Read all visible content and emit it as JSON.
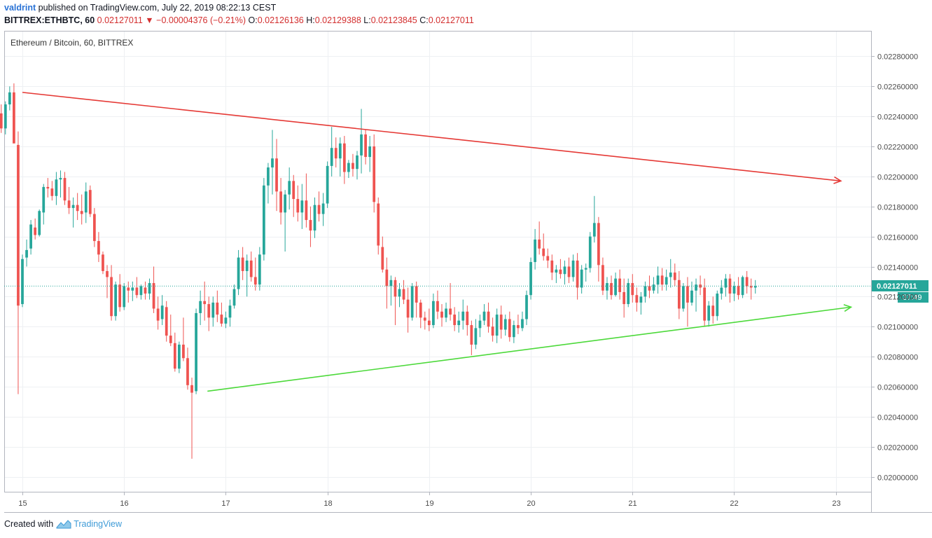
{
  "header": {
    "author": "valdrint",
    "published_text": " published on TradingView.com, July 22, 2019 08:22:13 CEST",
    "symbol": "BITTREX:ETHBTC, 60",
    "price": "0.02127011",
    "change": "−0.00004376 (−0.21%)",
    "ohlc": {
      "o_label": "O:",
      "o": "0.02126136",
      "h_label": "H:",
      "h": "0.02129388",
      "l_label": "L:",
      "l": "0.02123845",
      "c_label": "C:",
      "c": "0.02127011"
    }
  },
  "footer": {
    "created_with": "Created with",
    "brand": "TradingView"
  },
  "chart_data": {
    "type": "candlestick",
    "title": "Ethereum / Bitcoin, 60, BITTREX",
    "ylim": [
      0.0199,
      0.02297
    ],
    "y_ticks": [
      "0.02000000",
      "0.02020000",
      "0.02040000",
      "0.02060000",
      "0.02080000",
      "0.02100000",
      "0.02120000",
      "0.02140000",
      "0.02160000",
      "0.02180000",
      "0.02200000",
      "0.02220000",
      "0.02240000",
      "0.02260000",
      "0.02280000"
    ],
    "x_ticks": [
      "15",
      "16",
      "17",
      "18",
      "19",
      "20",
      "21",
      "22",
      "23"
    ],
    "grid": true,
    "last_price": {
      "label": "0.02127011",
      "value": 0.02127011,
      "countdown": "37:49",
      "color": "#26a69a"
    },
    "trendlines": [
      {
        "name": "descending resistance",
        "color": "#e53935",
        "arrow": true,
        "from": {
          "day": 15.0,
          "price": 0.02256
        },
        "to": {
          "day": 23.05,
          "price": 0.02197
        }
      },
      {
        "name": "ascending support",
        "color": "#4cd93a",
        "arrow": true,
        "from": {
          "day": 16.82,
          "price": 0.02057
        },
        "to": {
          "day": 23.15,
          "price": 0.02113
        }
      }
    ],
    "colors": {
      "up": "#26a69a",
      "down": "#ef5350"
    },
    "candle_interval_days": 0.04167,
    "start_day": 14.75,
    "candles": [
      [
        0.02244,
        0.02245,
        0.02232,
        0.02242
      ],
      [
        0.02242,
        0.02248,
        0.02229,
        0.02232
      ],
      [
        0.02232,
        0.0225,
        0.02228,
        0.02248
      ],
      [
        0.02248,
        0.0226,
        0.02244,
        0.02256
      ],
      [
        0.02256,
        0.02262,
        0.02225,
        0.02222
      ],
      [
        0.02221,
        0.0223,
        0.02055,
        0.02114
      ],
      [
        0.02115,
        0.02148,
        0.02113,
        0.02145
      ],
      [
        0.02146,
        0.02158,
        0.0214,
        0.02151
      ],
      [
        0.02152,
        0.02171,
        0.02148,
        0.02168
      ],
      [
        0.02166,
        0.02172,
        0.02158,
        0.02161
      ],
      [
        0.02161,
        0.02178,
        0.0216,
        0.02177
      ],
      [
        0.02176,
        0.02195,
        0.02168,
        0.02193
      ],
      [
        0.02193,
        0.02199,
        0.02186,
        0.02192
      ],
      [
        0.02192,
        0.02197,
        0.02184,
        0.02187
      ],
      [
        0.02187,
        0.02203,
        0.02181,
        0.02198
      ],
      [
        0.02198,
        0.02204,
        0.02186,
        0.02199
      ],
      [
        0.02199,
        0.02203,
        0.02181,
        0.02184
      ],
      [
        0.02184,
        0.02193,
        0.02175,
        0.02179
      ],
      [
        0.02179,
        0.02186,
        0.02166,
        0.02181
      ],
      [
        0.02181,
        0.02189,
        0.02171,
        0.02177
      ],
      [
        0.02177,
        0.02188,
        0.02168,
        0.02175
      ],
      [
        0.02176,
        0.02196,
        0.02169,
        0.0219
      ],
      [
        0.02191,
        0.02194,
        0.02173,
        0.02175
      ],
      [
        0.02175,
        0.02179,
        0.02153,
        0.02157
      ],
      [
        0.02157,
        0.02163,
        0.02143,
        0.02148
      ],
      [
        0.02148,
        0.0215,
        0.02135,
        0.02137
      ],
      [
        0.02137,
        0.02141,
        0.02119,
        0.02133
      ],
      [
        0.02133,
        0.02141,
        0.02104,
        0.02107
      ],
      [
        0.02107,
        0.0213,
        0.02104,
        0.02128
      ],
      [
        0.02128,
        0.02135,
        0.0211,
        0.02113
      ],
      [
        0.02113,
        0.02129,
        0.02111,
        0.02127
      ],
      [
        0.02126,
        0.0213,
        0.02116,
        0.02124
      ],
      [
        0.02124,
        0.0213,
        0.02117,
        0.02126
      ],
      [
        0.02126,
        0.02133,
        0.02119,
        0.02121
      ],
      [
        0.02121,
        0.02128,
        0.02118,
        0.02127
      ],
      [
        0.02126,
        0.0213,
        0.02118,
        0.02122
      ],
      [
        0.02122,
        0.02132,
        0.02118,
        0.02129
      ],
      [
        0.02129,
        0.0214,
        0.02109,
        0.02112
      ],
      [
        0.02112,
        0.0212,
        0.02098,
        0.02104
      ],
      [
        0.02105,
        0.02121,
        0.02101,
        0.02114
      ],
      [
        0.02113,
        0.02117,
        0.0209,
        0.02094
      ],
      [
        0.02094,
        0.02108,
        0.02087,
        0.02089
      ],
      [
        0.02089,
        0.02096,
        0.0207,
        0.02072
      ],
      [
        0.02072,
        0.0209,
        0.02069,
        0.02088
      ],
      [
        0.02088,
        0.02106,
        0.02077,
        0.02079
      ],
      [
        0.02079,
        0.02086,
        0.02058,
        0.02061
      ],
      [
        0.02061,
        0.02066,
        0.02012,
        0.02056
      ],
      [
        0.02057,
        0.02112,
        0.02055,
        0.02109
      ],
      [
        0.02109,
        0.02124,
        0.02101,
        0.02117
      ],
      [
        0.02117,
        0.0213,
        0.02104,
        0.02115
      ],
      [
        0.02115,
        0.0212,
        0.02097,
        0.02106
      ],
      [
        0.02106,
        0.0212,
        0.021,
        0.02116
      ],
      [
        0.02116,
        0.02124,
        0.02103,
        0.02108
      ],
      [
        0.02108,
        0.02116,
        0.021,
        0.02102
      ],
      [
        0.02102,
        0.0211,
        0.02099,
        0.02106
      ],
      [
        0.02106,
        0.02118,
        0.021,
        0.02114
      ],
      [
        0.02114,
        0.02128,
        0.02112,
        0.02125
      ],
      [
        0.02125,
        0.02151,
        0.02121,
        0.02146
      ],
      [
        0.02146,
        0.02153,
        0.02131,
        0.02137
      ],
      [
        0.02137,
        0.02148,
        0.0212,
        0.02144
      ],
      [
        0.02144,
        0.0215,
        0.0213,
        0.02133
      ],
      [
        0.02133,
        0.02146,
        0.02124,
        0.02128
      ],
      [
        0.02128,
        0.02153,
        0.02124,
        0.02148
      ],
      [
        0.02148,
        0.02199,
        0.02144,
        0.02194
      ],
      [
        0.02194,
        0.02209,
        0.02182,
        0.02206
      ],
      [
        0.02206,
        0.02231,
        0.02188,
        0.02212
      ],
      [
        0.02212,
        0.02225,
        0.02177,
        0.0219
      ],
      [
        0.0219,
        0.02199,
        0.02168,
        0.02176
      ],
      [
        0.02176,
        0.02191,
        0.0215,
        0.02188
      ],
      [
        0.02188,
        0.02206,
        0.02178,
        0.02197
      ],
      [
        0.02197,
        0.02201,
        0.02173,
        0.02185
      ],
      [
        0.02185,
        0.02194,
        0.0217,
        0.02176
      ],
      [
        0.02176,
        0.02195,
        0.02165,
        0.02184
      ],
      [
        0.02184,
        0.02202,
        0.02166,
        0.02171
      ],
      [
        0.02171,
        0.0218,
        0.02153,
        0.02164
      ],
      [
        0.02164,
        0.02186,
        0.02159,
        0.02181
      ],
      [
        0.02181,
        0.0219,
        0.0217,
        0.02175
      ],
      [
        0.02175,
        0.02189,
        0.02167,
        0.02182
      ],
      [
        0.02182,
        0.0221,
        0.02179,
        0.02207
      ],
      [
        0.02207,
        0.02233,
        0.022,
        0.02219
      ],
      [
        0.02219,
        0.02226,
        0.02206,
        0.02212
      ],
      [
        0.02212,
        0.02226,
        0.022,
        0.02222
      ],
      [
        0.02222,
        0.02227,
        0.02195,
        0.02203
      ],
      [
        0.02203,
        0.02211,
        0.02199,
        0.02209
      ],
      [
        0.02209,
        0.02215,
        0.022,
        0.02205
      ],
      [
        0.02205,
        0.02217,
        0.02198,
        0.02214
      ],
      [
        0.02214,
        0.02245,
        0.02202,
        0.02228
      ],
      [
        0.02228,
        0.02231,
        0.02208,
        0.02213
      ],
      [
        0.02213,
        0.02227,
        0.02203,
        0.0222
      ],
      [
        0.0222,
        0.02228,
        0.02176,
        0.02183
      ],
      [
        0.02182,
        0.02186,
        0.02148,
        0.02154
      ],
      [
        0.02153,
        0.0216,
        0.02136,
        0.02138
      ],
      [
        0.02138,
        0.02146,
        0.02112,
        0.02127
      ],
      [
        0.02127,
        0.02134,
        0.02114,
        0.02131
      ],
      [
        0.02131,
        0.02133,
        0.02101,
        0.0212
      ],
      [
        0.0212,
        0.02129,
        0.02113,
        0.02125
      ],
      [
        0.02125,
        0.02131,
        0.02115,
        0.02118
      ],
      [
        0.02118,
        0.02126,
        0.02096,
        0.02106
      ],
      [
        0.02106,
        0.02129,
        0.02104,
        0.02127
      ],
      [
        0.02127,
        0.0213,
        0.02106,
        0.02116
      ],
      [
        0.02116,
        0.02118,
        0.02099,
        0.02106
      ],
      [
        0.02106,
        0.0211,
        0.02098,
        0.02104
      ],
      [
        0.02104,
        0.02112,
        0.02097,
        0.02101
      ],
      [
        0.02101,
        0.02122,
        0.02099,
        0.02117
      ],
      [
        0.02117,
        0.02124,
        0.02105,
        0.0211
      ],
      [
        0.0211,
        0.02115,
        0.021,
        0.02106
      ],
      [
        0.02106,
        0.02116,
        0.02103,
        0.02112
      ],
      [
        0.02112,
        0.02129,
        0.02104,
        0.02108
      ],
      [
        0.02108,
        0.02113,
        0.02097,
        0.02101
      ],
      [
        0.02101,
        0.0211,
        0.02096,
        0.02104
      ],
      [
        0.02104,
        0.02118,
        0.02098,
        0.0211
      ],
      [
        0.0211,
        0.02114,
        0.02094,
        0.02101
      ],
      [
        0.02101,
        0.02104,
        0.02081,
        0.02088
      ],
      [
        0.02088,
        0.02105,
        0.02085,
        0.02099
      ],
      [
        0.02099,
        0.02108,
        0.02093,
        0.02104
      ],
      [
        0.02104,
        0.02115,
        0.02101,
        0.0211
      ],
      [
        0.0211,
        0.02116,
        0.02096,
        0.021
      ],
      [
        0.021,
        0.02106,
        0.0209,
        0.02094
      ],
      [
        0.02094,
        0.02112,
        0.02089,
        0.02108
      ],
      [
        0.02108,
        0.02114,
        0.02092,
        0.02098
      ],
      [
        0.02098,
        0.02108,
        0.02094,
        0.02105
      ],
      [
        0.02105,
        0.0211,
        0.0209,
        0.02093
      ],
      [
        0.02093,
        0.02104,
        0.02089,
        0.02101
      ],
      [
        0.02101,
        0.02108,
        0.02095,
        0.02099
      ],
      [
        0.02099,
        0.0211,
        0.02097,
        0.02105
      ],
      [
        0.02105,
        0.02124,
        0.02101,
        0.02121
      ],
      [
        0.02121,
        0.02146,
        0.02118,
        0.02143
      ],
      [
        0.02143,
        0.02165,
        0.02138,
        0.02158
      ],
      [
        0.02158,
        0.0217,
        0.02148,
        0.02152
      ],
      [
        0.02152,
        0.02162,
        0.02144,
        0.02147
      ],
      [
        0.02147,
        0.02152,
        0.02139,
        0.02144
      ],
      [
        0.02144,
        0.02148,
        0.02131,
        0.02136
      ],
      [
        0.02136,
        0.02141,
        0.02129,
        0.02138
      ],
      [
        0.02138,
        0.02145,
        0.02132,
        0.02135
      ],
      [
        0.02135,
        0.02144,
        0.02128,
        0.0214
      ],
      [
        0.0214,
        0.02146,
        0.02129,
        0.02133
      ],
      [
        0.02133,
        0.02148,
        0.0213,
        0.02144
      ],
      [
        0.02144,
        0.02149,
        0.02118,
        0.02126
      ],
      [
        0.02126,
        0.02141,
        0.02122,
        0.02138
      ],
      [
        0.02138,
        0.02142,
        0.0213,
        0.02139
      ],
      [
        0.02139,
        0.02163,
        0.02136,
        0.0216
      ],
      [
        0.0216,
        0.02187,
        0.02156,
        0.02169
      ],
      [
        0.02169,
        0.02173,
        0.0213,
        0.02141
      ],
      [
        0.02141,
        0.02146,
        0.02121,
        0.02124
      ],
      [
        0.02124,
        0.02133,
        0.02118,
        0.02129
      ],
      [
        0.02129,
        0.02134,
        0.02118,
        0.02121
      ],
      [
        0.02121,
        0.02136,
        0.0212,
        0.02132
      ],
      [
        0.02132,
        0.02138,
        0.02118,
        0.02123
      ],
      [
        0.02123,
        0.02132,
        0.02106,
        0.02115
      ],
      [
        0.02115,
        0.02132,
        0.02113,
        0.02129
      ],
      [
        0.02129,
        0.02135,
        0.02116,
        0.02121
      ],
      [
        0.02121,
        0.02126,
        0.0211,
        0.02116
      ],
      [
        0.02116,
        0.02123,
        0.02108,
        0.0212
      ],
      [
        0.0212,
        0.0213,
        0.02116,
        0.02127
      ],
      [
        0.02127,
        0.02134,
        0.02119,
        0.02124
      ],
      [
        0.02124,
        0.02133,
        0.02122,
        0.02128
      ],
      [
        0.02128,
        0.0214,
        0.02122,
        0.02134
      ],
      [
        0.02134,
        0.02139,
        0.02124,
        0.02128
      ],
      [
        0.02128,
        0.02138,
        0.02124,
        0.02133
      ],
      [
        0.02133,
        0.02145,
        0.02126,
        0.02136
      ],
      [
        0.02136,
        0.02142,
        0.02127,
        0.02131
      ],
      [
        0.02131,
        0.02137,
        0.02105,
        0.02112
      ],
      [
        0.02112,
        0.02129,
        0.0211,
        0.02127
      ],
      [
        0.02127,
        0.02133,
        0.021,
        0.02116
      ],
      [
        0.02116,
        0.0213,
        0.02114,
        0.02124
      ],
      [
        0.02124,
        0.02132,
        0.0211,
        0.02128
      ],
      [
        0.02128,
        0.02134,
        0.02121,
        0.02126
      ],
      [
        0.02126,
        0.02132,
        0.021,
        0.02104
      ],
      [
        0.02104,
        0.02117,
        0.021,
        0.02114
      ],
      [
        0.02114,
        0.0212,
        0.02102,
        0.02107
      ],
      [
        0.02107,
        0.02124,
        0.02104,
        0.02122
      ],
      [
        0.02122,
        0.02131,
        0.02118,
        0.02126
      ],
      [
        0.02126,
        0.02135,
        0.0212,
        0.02132
      ],
      [
        0.02132,
        0.02135,
        0.02116,
        0.02122
      ],
      [
        0.02122,
        0.0213,
        0.02117,
        0.02127
      ],
      [
        0.02127,
        0.02133,
        0.02118,
        0.02121
      ],
      [
        0.02121,
        0.02134,
        0.02119,
        0.02133
      ],
      [
        0.02133,
        0.02137,
        0.02122,
        0.02127
      ],
      [
        0.02127,
        0.02132,
        0.02118,
        0.02126
      ],
      [
        0.02126,
        0.02131,
        0.02122,
        0.02127
      ]
    ]
  }
}
